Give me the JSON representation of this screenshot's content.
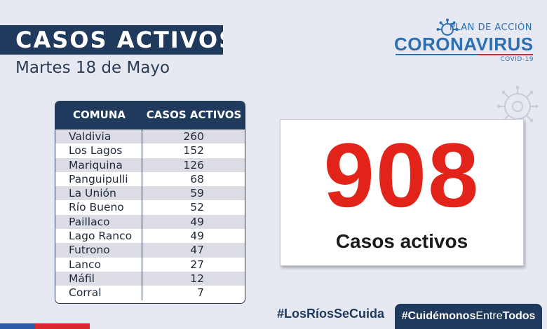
{
  "header": {
    "title": "CASOS ACTIVOS",
    "date": "Martes 18 de Mayo"
  },
  "logo": {
    "top_text": "PLAN DE ACCIÓN",
    "main_text": "CORONAVIRUS",
    "sub_text": "COVID-19",
    "color": "#2d6fb3"
  },
  "table": {
    "headers": [
      "COMUNA",
      "CASOS ACTIVOS"
    ],
    "rows": [
      {
        "comuna": "Valdivia",
        "casos": "260"
      },
      {
        "comuna": "Los Lagos",
        "casos": "152"
      },
      {
        "comuna": "Mariquina",
        "casos": "126"
      },
      {
        "comuna": "Panguipulli",
        "casos": "68"
      },
      {
        "comuna": "La Unión",
        "casos": "59"
      },
      {
        "comuna": "Río Bueno",
        "casos": "52"
      },
      {
        "comuna": "Paillaco",
        "casos": "49"
      },
      {
        "comuna": "Lago Ranco",
        "casos": "49"
      },
      {
        "comuna": "Futrono",
        "casos": "47"
      },
      {
        "comuna": "Lanco",
        "casos": "27"
      },
      {
        "comuna": "Máfil",
        "casos": "12"
      },
      {
        "comuna": "Corral",
        "casos": "7"
      }
    ]
  },
  "total": {
    "value": "908",
    "label": "Casos activos",
    "color": "#e2231a"
  },
  "footer": {
    "hashtag1": "#LosRíosSeCuida",
    "hashtag2_a": "#Cuidémonos",
    "hashtag2_b": "Entre",
    "hashtag2_c": "Todos"
  }
}
